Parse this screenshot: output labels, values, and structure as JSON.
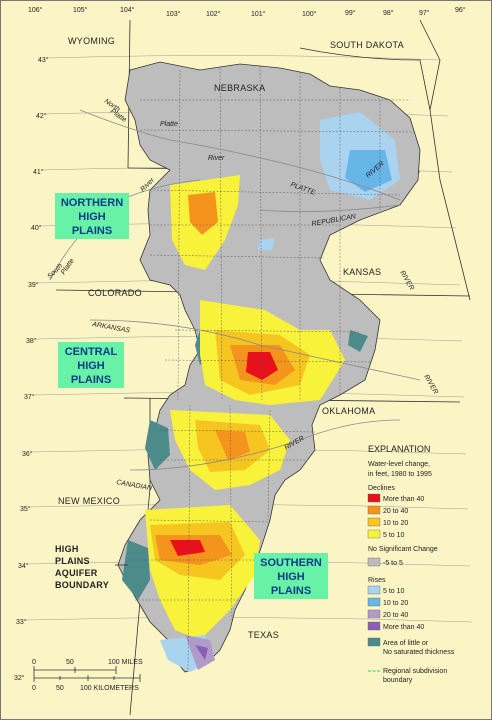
{
  "graticule": {
    "top_lon": [
      "106°",
      "105°",
      "104°",
      "103°",
      "102°",
      "101°",
      "100°",
      "99°",
      "98°",
      "97°",
      "96°"
    ],
    "left_lat": [
      "43°",
      "42°",
      "41°",
      "40°",
      "39°",
      "38°",
      "37°",
      "36°",
      "35°",
      "34°",
      "33°",
      "32°"
    ]
  },
  "states": {
    "wyoming": "WYOMING",
    "south_dakota": "SOUTH DAKOTA",
    "nebraska": "NEBRASKA",
    "kansas": "KANSAS",
    "colorado": "COLORADO",
    "oklahoma": "OKLAHOMA",
    "new_mexico": "NEW MEXICO",
    "texas": "TEXAS"
  },
  "rivers": {
    "north_platte_1": "North",
    "north_platte_2": "Platte",
    "platte": "Platte",
    "river_platte": "River",
    "platte_upper": "PLATTE",
    "river_1": "RIVER",
    "river_2": "River",
    "republican": "REPUBLICAN",
    "south_1": "South",
    "south_2": "Platte",
    "arkansas": "ARKANSAS",
    "river_3": "RIVER",
    "river_4": "RIVER",
    "canadian": "CANADIAN",
    "river_5": "RIVER"
  },
  "regions": {
    "northern": [
      "NORTHERN",
      "HIGH",
      "PLAINS"
    ],
    "central": [
      "CENTRAL",
      "HIGH",
      "PLAINS"
    ],
    "southern": [
      "SOUTHERN",
      "HIGH",
      "PLAINS"
    ],
    "boundary": [
      "HIGH",
      "PLAINS",
      "AQUIFER",
      "BOUNDARY"
    ]
  },
  "legend": {
    "title": "EXPLANATION",
    "subtitle_1": "Water-level change,",
    "subtitle_2": "in feet, 1980 to 1995",
    "declines_heading": "Declines",
    "declines": [
      {
        "label": "More than 40",
        "color": "#e8101a"
      },
      {
        "label": "20 to 40",
        "color": "#f5941d"
      },
      {
        "label": "10 to 20",
        "color": "#f7c520"
      },
      {
        "label": "5 to 10",
        "color": "#f9f23a"
      }
    ],
    "nochange_heading": "No Significant Change",
    "nochange": {
      "label": "-5 to  5",
      "color": "#bdbdbd"
    },
    "rises_heading": "Rises",
    "rises": [
      {
        "label": "5 to 10",
        "color": "#a9d3ef"
      },
      {
        "label": "10 to 20",
        "color": "#67b6e8"
      },
      {
        "label": "20 to 40",
        "color": "#b09ac8"
      },
      {
        "label": "More than 40",
        "color": "#8b5fb5"
      }
    ],
    "little_1": "Area of little or",
    "little_2": "No saturated thickness",
    "little_color": "#4d8a8a",
    "boundary_1": "Regional subdivision",
    "boundary_2": "boundary",
    "boundary_color": "#2fd07a"
  },
  "scale": {
    "miles_ticks": [
      "0",
      "50",
      "100 MILES"
    ],
    "km_ticks": [
      "0",
      "50",
      "100 KILOMETERS"
    ]
  }
}
